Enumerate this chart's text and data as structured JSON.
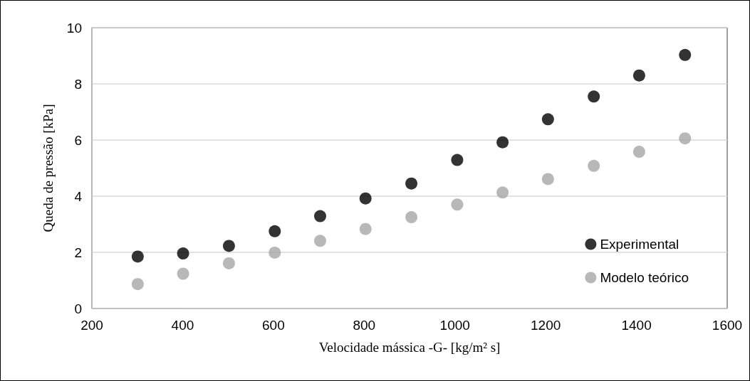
{
  "chart_data": {
    "type": "scatter",
    "xlabel": "Velocidade mássica -G- [kg/m² s]",
    "ylabel": "Queda de pressão [kPa]",
    "x": [
      301,
      401,
      502,
      603,
      703,
      803,
      904,
      1005,
      1105,
      1205,
      1306,
      1406,
      1507
    ],
    "series": [
      {
        "name": "Experimental",
        "color": "#000000",
        "values": [
          1.85,
          1.96,
          2.23,
          2.75,
          3.29,
          3.92,
          4.45,
          5.29,
          5.92,
          6.74,
          7.55,
          8.3,
          9.03
        ]
      },
      {
        "name": "Modelo teórico",
        "color": "#a6a6a6",
        "values": [
          0.87,
          1.24,
          1.61,
          1.99,
          2.41,
          2.83,
          3.25,
          3.7,
          4.13,
          4.61,
          5.08,
          5.58,
          6.06
        ]
      }
    ],
    "xlim": [
      200,
      1600
    ],
    "xticks": [
      200,
      400,
      600,
      800,
      1000,
      1200,
      1400,
      1600
    ],
    "ylim": [
      0,
      10
    ],
    "yticks": [
      0,
      2,
      4,
      6,
      8,
      10
    ],
    "grid": "y",
    "legend": "bottom right",
    "marker": "circle"
  }
}
